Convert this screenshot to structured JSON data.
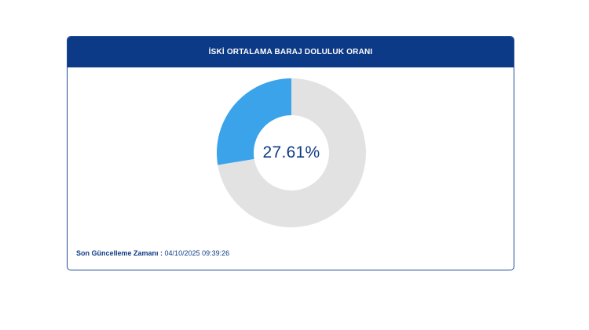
{
  "card": {
    "title": "İSKİ ORTALAMA BARAJ DOLULUK ORANI"
  },
  "gauge": {
    "value_text": "27.61%",
    "fill_percent": 27.61,
    "fill_color": "#3aa3ea",
    "empty_color": "#e2e2e2"
  },
  "footer": {
    "label": "Son Güncelleme Zamanı :",
    "value": "04/10/2025 09:39:26"
  },
  "colors": {
    "header_bg": "#0d3a86",
    "accent_text": "#0d3a86"
  }
}
